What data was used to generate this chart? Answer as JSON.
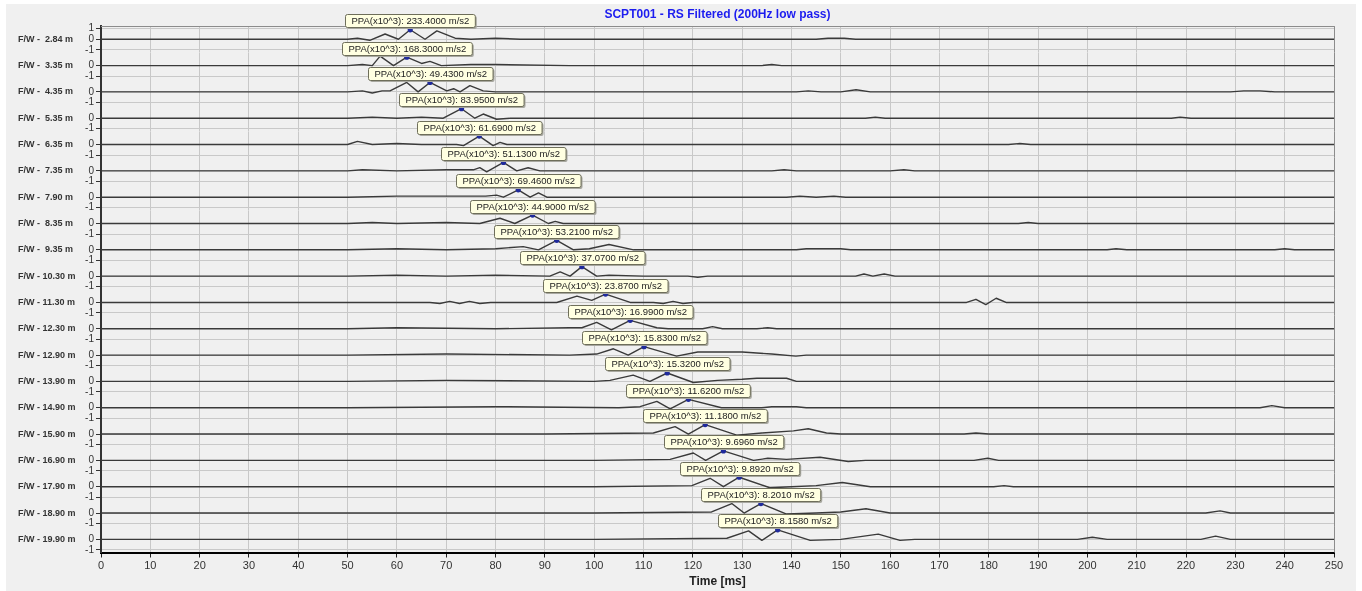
{
  "chart_data": [
    {
      "type": "line",
      "title": "SCPT001 - RS Filtered (200Hz low pass)",
      "ylabel": "F/W -  2.84 m",
      "color": "#3a3a3a",
      "x": [
        0,
        50,
        52,
        54.5,
        57.6,
        60.3,
        62.7,
        65.7,
        68.1,
        71.8,
        75,
        80,
        85,
        145,
        147.4,
        150.7,
        153,
        250
      ],
      "values": [
        0,
        0,
        0.1,
        -0.1,
        0.5,
        0,
        0.9,
        0,
        0.8,
        0.1,
        0,
        0.1,
        0,
        0,
        0.1,
        0.1,
        0,
        0
      ],
      "xlim": [
        0,
        250
      ],
      "xticks": [
        0,
        10,
        20,
        30,
        40,
        50,
        60,
        70,
        80,
        90,
        100,
        110,
        120,
        130,
        140,
        150,
        160,
        170,
        180,
        190,
        200,
        210,
        220,
        230,
        240,
        250
      ],
      "ylim": [
        -1.25,
        1.25
      ],
      "yticks": [
        -1,
        0,
        1
      ],
      "grid": true,
      "tick_labels": "y",
      "annotations": [
        {
          "text": "PPA(x10^3): 233.4000 m/s2",
          "x": 62.7,
          "y": 0.9
        }
      ]
    },
    {
      "type": "line",
      "ylabel": "F/W -  3.35 m",
      "color": "#3a3a3a",
      "x": [
        0,
        50,
        53,
        55,
        56.6,
        59.3,
        62,
        65,
        66.7,
        69,
        75,
        80,
        95,
        134,
        136,
        138,
        250
      ],
      "values": [
        0,
        0,
        0.1,
        0,
        0.9,
        0,
        0.8,
        0.2,
        0.4,
        0,
        0.1,
        0.1,
        0,
        0,
        0.1,
        0,
        0
      ],
      "xlim": [
        0,
        250
      ],
      "xticks": [
        0,
        10,
        20,
        30,
        40,
        50,
        60,
        70,
        80,
        90,
        100,
        110,
        120,
        130,
        140,
        150,
        160,
        170,
        180,
        190,
        200,
        210,
        220,
        230,
        240,
        250
      ],
      "ylim": [
        -1.25,
        1.25
      ],
      "yticks": [
        -1,
        0
      ],
      "grid": true,
      "tick_labels": "y",
      "annotations": [
        {
          "text": "PPA(x10^3): 168.3000 m/s2",
          "x": 62,
          "y": 0.8
        }
      ]
    },
    {
      "type": "line",
      "ylabel": "F/W -  4.35 m",
      "color": "#3a3a3a",
      "x": [
        0,
        50,
        53,
        55,
        57,
        58.6,
        62,
        64.3,
        66.7,
        70.1,
        71.5,
        72.8,
        74.8,
        77.5,
        80,
        141,
        143.4,
        146,
        150,
        153.1,
        156,
        229,
        231.7,
        235,
        238,
        250
      ],
      "values": [
        0,
        0,
        0.1,
        -0.1,
        0.1,
        0.1,
        0.9,
        0,
        0.9,
        0.1,
        0.3,
        0,
        0.6,
        0.1,
        0,
        0,
        0.1,
        0,
        0,
        0.2,
        0,
        0,
        0.1,
        0.1,
        0,
        0
      ],
      "xlim": [
        0,
        250
      ],
      "xticks": [
        0,
        10,
        20,
        30,
        40,
        50,
        60,
        70,
        80,
        90,
        100,
        110,
        120,
        130,
        140,
        150,
        160,
        170,
        180,
        190,
        200,
        210,
        220,
        230,
        240,
        250
      ],
      "ylim": [
        -1.25,
        1.25
      ],
      "yticks": [
        -1,
        0
      ],
      "grid": true,
      "tick_labels": "y",
      "annotations": [
        {
          "text": "PPA(x10^3): 49.4300 m/s2",
          "x": 66.7,
          "y": 0.9
        }
      ]
    },
    {
      "type": "line",
      "ylabel": "F/W -  5.35 m",
      "color": "#3a3a3a",
      "x": [
        0,
        50,
        55,
        60,
        65,
        69.4,
        73.1,
        75.8,
        77.5,
        80.2,
        83,
        155,
        157,
        159,
        217,
        218.8,
        221,
        250
      ],
      "values": [
        0,
        0,
        0.1,
        0,
        0.1,
        0,
        0.9,
        0,
        0.4,
        -0.1,
        0,
        0,
        0.1,
        0,
        0,
        0.1,
        0,
        0
      ],
      "xlim": [
        0,
        250
      ],
      "xticks": [
        0,
        10,
        20,
        30,
        40,
        50,
        60,
        70,
        80,
        90,
        100,
        110,
        120,
        130,
        140,
        150,
        160,
        170,
        180,
        190,
        200,
        210,
        220,
        230,
        240,
        250
      ],
      "ylim": [
        -1.25,
        1.25
      ],
      "yticks": [
        -1,
        0
      ],
      "grid": true,
      "tick_labels": "y",
      "annotations": [
        {
          "text": "PPA(x10^3): 83.9500 m/s2",
          "x": 73.1,
          "y": 0.9
        }
      ]
    },
    {
      "type": "line",
      "ylabel": "F/W -  6.35 m",
      "color": "#3a3a3a",
      "x": [
        0,
        50,
        52,
        55,
        60,
        65,
        72.1,
        73.5,
        76.7,
        79.5,
        80.9,
        82.3,
        184,
        186.3,
        188.5,
        250
      ],
      "values": [
        0,
        0,
        0.3,
        0,
        0.1,
        0,
        0,
        -0.1,
        0.8,
        -0.1,
        0.2,
        0,
        0,
        0.1,
        0,
        0
      ],
      "xlim": [
        0,
        250
      ],
      "xticks": [
        0,
        10,
        20,
        30,
        40,
        50,
        60,
        70,
        80,
        90,
        100,
        110,
        120,
        130,
        140,
        150,
        160,
        170,
        180,
        190,
        200,
        210,
        220,
        230,
        240,
        250
      ],
      "ylim": [
        -1.25,
        1.25
      ],
      "yticks": [
        -1,
        0
      ],
      "grid": true,
      "tick_labels": "y",
      "annotations": [
        {
          "text": "PPA(x10^3): 61.6900 m/s2",
          "x": 76.7,
          "y": 0.8
        }
      ]
    },
    {
      "type": "line",
      "ylabel": "F/W -  7.35 m",
      "color": "#3a3a3a",
      "x": [
        0,
        50,
        53,
        60,
        70,
        75.5,
        76.8,
        78.2,
        81.6,
        84.3,
        86.6,
        89,
        136,
        138.5,
        141,
        160,
        162.8,
        165,
        250
      ],
      "values": [
        0,
        0,
        0.1,
        0,
        0.1,
        0.1,
        0.3,
        -0.1,
        0.8,
        0,
        0.3,
        0,
        0,
        0.1,
        0,
        0,
        0.1,
        0,
        0
      ],
      "xlim": [
        0,
        250
      ],
      "xticks": [
        0,
        10,
        20,
        30,
        40,
        50,
        60,
        70,
        80,
        90,
        100,
        110,
        120,
        130,
        140,
        150,
        160,
        170,
        180,
        190,
        200,
        210,
        220,
        230,
        240,
        250
      ],
      "ylim": [
        -1.25,
        1.25
      ],
      "yticks": [
        -1,
        0
      ],
      "grid": true,
      "tick_labels": "y",
      "annotations": [
        {
          "text": "PPA(x10^3): 51.1300 m/s2",
          "x": 81.6,
          "y": 0.8
        }
      ]
    },
    {
      "type": "line",
      "ylabel": "F/W -  7.90 m",
      "color": "#3a3a3a",
      "x": [
        0,
        50,
        60,
        70,
        78,
        80.2,
        81.6,
        84.6,
        87,
        88.7,
        90.4,
        95,
        139,
        141.7,
        145,
        148.6,
        151,
        250
      ],
      "values": [
        0,
        0,
        0.1,
        0.1,
        0.1,
        0.2,
        0,
        0.7,
        0,
        0.4,
        0,
        0,
        0,
        0.1,
        0,
        0.1,
        0,
        0
      ],
      "xlim": [
        0,
        250
      ],
      "xticks": [
        0,
        10,
        20,
        30,
        40,
        50,
        60,
        70,
        80,
        90,
        100,
        110,
        120,
        130,
        140,
        150,
        160,
        170,
        180,
        190,
        200,
        210,
        220,
        230,
        240,
        250
      ],
      "ylim": [
        -1.25,
        1.25
      ],
      "yticks": [
        -1,
        0
      ],
      "grid": true,
      "tick_labels": "y",
      "annotations": [
        {
          "text": "PPA(x10^3): 69.4600 m/s2",
          "x": 84.6,
          "y": 0.7
        }
      ]
    },
    {
      "type": "line",
      "ylabel": "F/W -  8.35 m",
      "color": "#3a3a3a",
      "x": [
        0,
        50,
        55,
        60,
        70,
        76.8,
        80.9,
        83.9,
        87.5,
        90.7,
        92.1,
        93.7,
        186,
        188,
        190,
        250
      ],
      "values": [
        0,
        0,
        0.1,
        0,
        0.1,
        0,
        0.5,
        0,
        0.8,
        0,
        0.2,
        0,
        0,
        0.1,
        0,
        0
      ],
      "xlim": [
        0,
        250
      ],
      "xticks": [
        0,
        10,
        20,
        30,
        40,
        50,
        60,
        70,
        80,
        90,
        100,
        110,
        120,
        130,
        140,
        150,
        160,
        170,
        180,
        190,
        200,
        210,
        220,
        230,
        240,
        250
      ],
      "ylim": [
        -1.25,
        1.25
      ],
      "yticks": [
        -1,
        0
      ],
      "grid": true,
      "tick_labels": "y",
      "annotations": [
        {
          "text": "PPA(x10^3): 44.9000 m/s2",
          "x": 87.5,
          "y": 0.8
        }
      ]
    },
    {
      "type": "line",
      "ylabel": "F/W -  9.35 m",
      "color": "#3a3a3a",
      "x": [
        0,
        50,
        60,
        70,
        80,
        85.6,
        88.7,
        92.4,
        95.8,
        99,
        103,
        108,
        141,
        143,
        150,
        152,
        204,
        205.8,
        208,
        238,
        240,
        242,
        250
      ],
      "values": [
        0,
        0,
        0.1,
        0,
        0.1,
        0.3,
        0,
        0.9,
        0,
        0.1,
        0.5,
        0,
        0,
        0.1,
        0.1,
        0,
        0,
        0.1,
        0,
        0,
        0.1,
        0,
        0
      ],
      "xlim": [
        0,
        250
      ],
      "xticks": [
        0,
        10,
        20,
        30,
        40,
        50,
        60,
        70,
        80,
        90,
        100,
        110,
        120,
        130,
        140,
        150,
        160,
        170,
        180,
        190,
        200,
        210,
        220,
        230,
        240,
        250
      ],
      "ylim": [
        -1.25,
        1.25
      ],
      "yticks": [
        -1,
        0
      ],
      "grid": true,
      "tick_labels": "y",
      "annotations": [
        {
          "text": "PPA(x10^3): 53.2100 m/s2",
          "x": 92.4,
          "y": 0.9
        }
      ]
    },
    {
      "type": "line",
      "ylabel": "F/W - 10.30 m",
      "color": "#3a3a3a",
      "x": [
        0,
        50,
        60,
        70,
        80,
        91,
        93.1,
        95.1,
        97.5,
        100.5,
        103,
        110,
        119,
        121,
        123,
        153,
        154.7,
        156.5,
        158.8,
        161,
        250
      ],
      "values": [
        0,
        0,
        0.1,
        0,
        0.1,
        0,
        0.4,
        0,
        0.9,
        0,
        0.1,
        0,
        0,
        -0.1,
        0,
        0,
        0.2,
        0,
        0.2,
        0,
        0
      ],
      "xlim": [
        0,
        250
      ],
      "xticks": [
        0,
        10,
        20,
        30,
        40,
        50,
        60,
        70,
        80,
        90,
        100,
        110,
        120,
        130,
        140,
        150,
        160,
        170,
        180,
        190,
        200,
        210,
        220,
        230,
        240,
        250
      ],
      "ylim": [
        -1.25,
        1.25
      ],
      "yticks": [
        -1,
        0
      ],
      "grid": true,
      "tick_labels": "y",
      "annotations": [
        {
          "text": "PPA(x10^3): 37.0700 m/s2",
          "x": 97.5,
          "y": 0.9
        }
      ]
    },
    {
      "type": "line",
      "ylabel": "F/W - 11.30 m",
      "color": "#3a3a3a",
      "x": [
        0,
        50,
        66.7,
        68.7,
        70.7,
        72.7,
        74.7,
        76.8,
        79,
        92.4,
        96.5,
        99.5,
        102.3,
        107.3,
        112,
        114,
        116,
        118,
        120,
        175.5,
        177.4,
        179.4,
        181.5,
        183.5,
        250
      ],
      "values": [
        0,
        0,
        0,
        -0.1,
        0.1,
        -0.1,
        0.1,
        -0.1,
        0,
        0,
        0.6,
        0.2,
        0.8,
        0,
        0,
        -0.1,
        0.1,
        -0.1,
        0,
        0,
        0.3,
        -0.2,
        0.4,
        0,
        0
      ],
      "xlim": [
        0,
        250
      ],
      "xticks": [
        0,
        10,
        20,
        30,
        40,
        50,
        60,
        70,
        80,
        90,
        100,
        110,
        120,
        130,
        140,
        150,
        160,
        170,
        180,
        190,
        200,
        210,
        220,
        230,
        240,
        250
      ],
      "ylim": [
        -1.25,
        1.25
      ],
      "yticks": [
        -1,
        0
      ],
      "grid": true,
      "tick_labels": "y",
      "annotations": [
        {
          "text": "PPA(x10^3): 23.8700 m/s2",
          "x": 102.3,
          "y": 0.8
        }
      ]
    },
    {
      "type": "line",
      "ylabel": "F/W - 12.30 m",
      "color": "#3a3a3a",
      "x": [
        0,
        50,
        60,
        80,
        95,
        97.5,
        100.5,
        103.5,
        107.3,
        112.7,
        115,
        122,
        124,
        126,
        133,
        135.2,
        137,
        250
      ],
      "values": [
        0,
        0,
        0.1,
        0,
        0.1,
        0.1,
        0.6,
        -0.1,
        0.8,
        0.1,
        0,
        0,
        0.2,
        0,
        0,
        0.1,
        0,
        0
      ],
      "xlim": [
        0,
        250
      ],
      "xticks": [
        0,
        10,
        20,
        30,
        40,
        50,
        60,
        70,
        80,
        90,
        100,
        110,
        120,
        130,
        140,
        150,
        160,
        170,
        180,
        190,
        200,
        210,
        220,
        230,
        240,
        250
      ],
      "ylim": [
        -1.25,
        1.25
      ],
      "yticks": [
        -1,
        0
      ],
      "grid": true,
      "tick_labels": "y",
      "annotations": [
        {
          "text": "PPA(x10^3): 16.9900 m/s2",
          "x": 107.3,
          "y": 0.8
        }
      ]
    },
    {
      "type": "line",
      "ylabel": "F/W - 12.90 m",
      "color": "#3a3a3a",
      "x": [
        0,
        50,
        70,
        95,
        100.5,
        103.9,
        106.9,
        110.1,
        116.7,
        121,
        130,
        136,
        140.9,
        143,
        250
      ],
      "values": [
        0,
        0,
        0.1,
        0,
        0.1,
        0.6,
        0,
        0.8,
        -0.1,
        0.3,
        0.3,
        0.1,
        -0.1,
        0,
        0
      ],
      "xlim": [
        0,
        250
      ],
      "xticks": [
        0,
        10,
        20,
        30,
        40,
        50,
        60,
        70,
        80,
        90,
        100,
        110,
        120,
        130,
        140,
        150,
        160,
        170,
        180,
        190,
        200,
        210,
        220,
        230,
        240,
        250
      ],
      "ylim": [
        -1.25,
        1.25
      ],
      "yticks": [
        -1,
        0
      ],
      "grid": true,
      "tick_labels": "y",
      "annotations": [
        {
          "text": "PPA(x10^3): 15.8300 m/s2",
          "x": 110.1,
          "y": 0.8
        }
      ]
    },
    {
      "type": "line",
      "ylabel": "F/W - 13.90 m",
      "color": "#3a3a3a",
      "x": [
        0,
        50,
        70,
        100,
        103.2,
        107.9,
        111.3,
        114.8,
        120.1,
        125,
        130,
        133,
        139,
        141,
        145,
        250
      ],
      "values": [
        0,
        0,
        0.1,
        0,
        0.1,
        0.6,
        0,
        0.8,
        -0.1,
        0.1,
        0.2,
        0.3,
        0.3,
        0,
        0,
        0
      ],
      "xlim": [
        0,
        250
      ],
      "xticks": [
        0,
        10,
        20,
        30,
        40,
        50,
        60,
        70,
        80,
        90,
        100,
        110,
        120,
        130,
        140,
        150,
        160,
        170,
        180,
        190,
        200,
        210,
        220,
        230,
        240,
        250
      ],
      "ylim": [
        -1.25,
        1.25
      ],
      "yticks": [
        -1,
        0
      ],
      "grid": true,
      "tick_labels": "y",
      "annotations": [
        {
          "text": "PPA(x10^3): 15.3200 m/s2",
          "x": 114.8,
          "y": 0.8
        }
      ]
    },
    {
      "type": "line",
      "ylabel": "F/W - 14.90 m",
      "color": "#3a3a3a",
      "x": [
        0,
        50,
        80,
        105,
        109.3,
        112.7,
        115.4,
        119.1,
        125.8,
        134,
        136,
        141,
        143,
        235,
        237.4,
        240,
        250
      ],
      "values": [
        0,
        0,
        0.1,
        0,
        0.1,
        0.6,
        -0.1,
        0.8,
        0,
        0,
        0.1,
        0.1,
        0,
        0,
        0.2,
        0,
        0
      ],
      "xlim": [
        0,
        250
      ],
      "xticks": [
        0,
        10,
        20,
        30,
        40,
        50,
        60,
        70,
        80,
        90,
        100,
        110,
        120,
        130,
        140,
        150,
        160,
        170,
        180,
        190,
        200,
        210,
        220,
        230,
        240,
        250
      ],
      "ylim": [
        -1.25,
        1.25
      ],
      "yticks": [
        -1,
        0
      ],
      "grid": true,
      "tick_labels": "y",
      "annotations": [
        {
          "text": "PPA(x10^3): 11.6200 m/s2",
          "x": 119.1,
          "y": 0.8
        }
      ]
    },
    {
      "type": "line",
      "ylabel": "F/W - 15.90 m",
      "color": "#3a3a3a",
      "x": [
        0,
        50,
        90,
        112,
        116.4,
        119.1,
        122.5,
        128.9,
        134,
        140.4,
        143.4,
        147.1,
        150,
        175,
        177.4,
        180,
        250
      ],
      "values": [
        0,
        0,
        0,
        0.1,
        0.7,
        0,
        0.9,
        -0.1,
        0.1,
        0.3,
        0.5,
        0.1,
        0,
        0,
        0.1,
        0,
        0
      ],
      "xlim": [
        0,
        250
      ],
      "xticks": [
        0,
        10,
        20,
        30,
        40,
        50,
        60,
        70,
        80,
        90,
        100,
        110,
        120,
        130,
        140,
        150,
        160,
        170,
        180,
        190,
        200,
        210,
        220,
        230,
        240,
        250
      ],
      "ylim": [
        -1.25,
        1.25
      ],
      "yticks": [
        -1,
        0
      ],
      "grid": true,
      "tick_labels": "y",
      "annotations": [
        {
          "text": "PPA(x10^3): 11.1800 m/s2",
          "x": 122.5,
          "y": 0.9
        }
      ]
    },
    {
      "type": "line",
      "ylabel": "F/W - 16.90 m",
      "color": "#3a3a3a",
      "x": [
        0,
        50,
        100,
        115.4,
        120.1,
        122.6,
        126.2,
        132.3,
        135.2,
        139,
        145.8,
        151.5,
        155,
        177,
        179.8,
        182,
        250
      ],
      "values": [
        0,
        0,
        0,
        0.1,
        0.7,
        0,
        0.9,
        0,
        0.2,
        0.1,
        0.3,
        -0.1,
        0,
        0,
        0.2,
        0,
        0
      ],
      "xlim": [
        0,
        250
      ],
      "xticks": [
        0,
        10,
        20,
        30,
        40,
        50,
        60,
        70,
        80,
        90,
        100,
        110,
        120,
        130,
        140,
        150,
        160,
        170,
        180,
        190,
        200,
        210,
        220,
        230,
        240,
        250
      ],
      "ylim": [
        -1.25,
        1.25
      ],
      "yticks": [
        -1,
        0
      ],
      "grid": true,
      "tick_labels": "y",
      "annotations": [
        {
          "text": "PPA(x10^3): 9.6960 m/s2",
          "x": 126.2,
          "y": 0.9
        }
      ]
    },
    {
      "type": "line",
      "ylabel": "F/W - 17.90 m",
      "color": "#3a3a3a",
      "x": [
        0,
        50,
        100,
        119.8,
        123.5,
        126.2,
        129.4,
        135.6,
        140,
        145,
        150.3,
        156,
        181,
        183.1,
        185,
        250
      ],
      "values": [
        0,
        0,
        0,
        0.1,
        0.8,
        0,
        0.9,
        -0.1,
        0,
        0.1,
        0.4,
        0,
        0,
        0.1,
        0,
        0
      ],
      "xlim": [
        0,
        250
      ],
      "xticks": [
        0,
        10,
        20,
        30,
        40,
        50,
        60,
        70,
        80,
        90,
        100,
        110,
        120,
        130,
        140,
        150,
        160,
        170,
        180,
        190,
        200,
        210,
        220,
        230,
        240,
        250
      ],
      "ylim": [
        -1.25,
        1.25
      ],
      "yticks": [
        -1,
        0
      ],
      "grid": true,
      "tick_labels": "y",
      "annotations": [
        {
          "text": "PPA(x10^3): 9.8920 m/s2",
          "x": 129.4,
          "y": 0.9
        }
      ]
    },
    {
      "type": "line",
      "ylabel": "F/W - 18.90 m",
      "color": "#3a3a3a",
      "x": [
        0,
        50,
        100,
        123.8,
        127.9,
        130.4,
        133.8,
        139,
        145,
        150,
        155.1,
        160,
        224,
        226.9,
        229,
        250
      ],
      "values": [
        0,
        0,
        0,
        0.1,
        0.9,
        0,
        0.9,
        -0.1,
        0,
        0.1,
        0.4,
        0,
        0,
        0.2,
        0,
        0
      ],
      "xlim": [
        0,
        250
      ],
      "xticks": [
        0,
        10,
        20,
        30,
        40,
        50,
        60,
        70,
        80,
        90,
        100,
        110,
        120,
        130,
        140,
        150,
        160,
        170,
        180,
        190,
        200,
        210,
        220,
        230,
        240,
        250
      ],
      "ylim": [
        -1.25,
        1.25
      ],
      "yticks": [
        -1,
        0
      ],
      "grid": true,
      "tick_labels": "y",
      "annotations": [
        {
          "text": "PPA(x10^3): 8.2010 m/s2",
          "x": 133.8,
          "y": 0.9
        }
      ]
    },
    {
      "type": "line",
      "ylabel": "F/W - 19.90 m",
      "xlabel": "Time [ms]",
      "color": "#3a3a3a",
      "x": [
        0,
        50,
        100,
        126.9,
        131.3,
        134,
        137.2,
        143.8,
        150,
        157.6,
        162,
        165,
        198,
        201,
        204,
        223,
        226,
        229,
        250
      ],
      "values": [
        0,
        0,
        0,
        0.1,
        0.8,
        -0.1,
        0.9,
        -0.1,
        0,
        0.5,
        -0.1,
        0,
        0,
        0.2,
        0,
        0,
        0.3,
        0,
        0
      ],
      "xlim": [
        0,
        250
      ],
      "xticks": [
        0,
        10,
        20,
        30,
        40,
        50,
        60,
        70,
        80,
        90,
        100,
        110,
        120,
        130,
        140,
        150,
        160,
        170,
        180,
        190,
        200,
        210,
        220,
        230,
        240,
        250
      ],
      "ylim": [
        -1.25,
        1.25
      ],
      "yticks": [
        -1,
        0
      ],
      "grid": true,
      "annotations": [
        {
          "text": "PPA(x10^3): 8.1580 m/s2",
          "x": 137.2,
          "y": 0.9
        }
      ]
    }
  ]
}
